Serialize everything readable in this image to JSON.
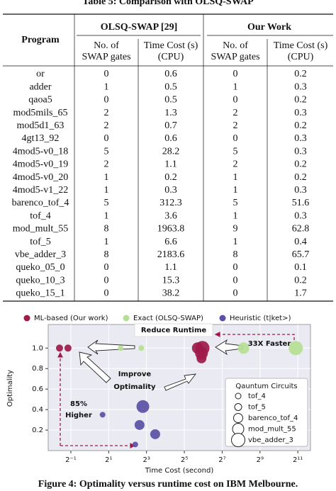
{
  "table": {
    "title": "Table 5: Comparison with OLSQ-SWAP",
    "program_header": "Program",
    "groups": [
      "OLSQ-SWAP [29]",
      "Our Work"
    ],
    "subheaders": [
      [
        "No. of",
        "SWAP gates"
      ],
      [
        "Time Cost (s)",
        "(CPU)"
      ],
      [
        "No. of",
        "SWAP gates"
      ],
      [
        "Time Cost (s)",
        "(CPU)"
      ]
    ],
    "rows": [
      [
        "or",
        0,
        0.6,
        0,
        0.2
      ],
      [
        "adder",
        1,
        0.5,
        1,
        0.3
      ],
      [
        "qaoa5",
        0,
        0.5,
        0,
        0.2
      ],
      [
        "mod5mils_65",
        2,
        1.3,
        2,
        0.3
      ],
      [
        "mod5d1_63",
        2,
        0.7,
        2,
        0.2
      ],
      [
        "4gt13_92",
        0,
        0.6,
        0,
        0.3
      ],
      [
        "4mod5-v0_18",
        5,
        28.2,
        5,
        0.3
      ],
      [
        "4mod5-v0_19",
        2,
        1.1,
        2,
        0.2
      ],
      [
        "4mod5-v0_20",
        1,
        0.2,
        1,
        0.2
      ],
      [
        "4mod5-v1_22",
        1,
        0.3,
        1,
        0.3
      ],
      [
        "barenco_tof_4",
        5,
        312.3,
        5,
        51.6
      ],
      [
        "tof_4",
        1,
        3.6,
        1,
        0.3
      ],
      [
        "mod_mult_55",
        8,
        1963.8,
        9,
        62.8
      ],
      [
        "tof_5",
        1,
        6.6,
        1,
        0.4
      ],
      [
        "vbe_adder_3",
        8,
        2183.6,
        8,
        65.7
      ],
      [
        "queko_05_0",
        0,
        1.1,
        0,
        0.1
      ],
      [
        "queko_10_3",
        0,
        15.3,
        0,
        0.2
      ],
      [
        "queko_15_1",
        0,
        38.2,
        0,
        1.7
      ]
    ]
  },
  "chart_data": {
    "type": "scatter",
    "xlabel": "Time Cost (second)",
    "ylabel": "Optimality",
    "xlog": true,
    "xlim": [
      0.218,
      3257
    ],
    "xticks": [
      {
        "value": 0.5,
        "label": "2⁻¹"
      },
      {
        "value": 2,
        "label": "2¹"
      },
      {
        "value": 8,
        "label": "2³"
      },
      {
        "value": 32,
        "label": "2⁵"
      },
      {
        "value": 128,
        "label": "2⁷"
      },
      {
        "value": 512,
        "label": "2⁹"
      },
      {
        "value": 2048,
        "label": "2¹¹"
      }
    ],
    "ylim": [
      0,
      1.23
    ],
    "yticks": [
      {
        "value": 0.2,
        "label": "0.2"
      },
      {
        "value": 0.4,
        "label": "0.4"
      },
      {
        "value": 0.6,
        "label": "0.6"
      },
      {
        "value": 0.8,
        "label": "0.8"
      },
      {
        "value": 1,
        "label": "1.0"
      }
    ],
    "series": [
      {
        "name": "ML-based (Our work)",
        "color": "#9e1a4a",
        "x": [
          0.33,
          0.45,
          52,
          62,
          60,
          60
        ],
        "y": [
          1,
          1,
          1,
          1,
          0.95,
          0.9
        ],
        "sizes": [
          5,
          5,
          8,
          10,
          9,
          7
        ]
      },
      {
        "name": "Exact (OLSQ-SWAP)",
        "color": "#b5de95",
        "x": [
          3.1,
          6.6,
          280,
          1900
        ],
        "y": [
          1,
          1,
          1,
          1
        ],
        "sizes": [
          4,
          4,
          8,
          10
        ]
      },
      {
        "name": "Heuristic (t|ket>)",
        "color": "#5a4fa6",
        "x": [
          1.6,
          7,
          6.2,
          5.3,
          11
        ],
        "y": [
          0.35,
          0.43,
          0.25,
          0.06,
          0.16
        ],
        "sizes": [
          4,
          9,
          7,
          4,
          7
        ]
      }
    ],
    "size_legend": {
      "title": "Qauntum Circuits",
      "labels": [
        "tof_4",
        "tof_5",
        "barenco_tof_4",
        "mod_mult_55",
        "vbe_adder_3"
      ],
      "sizes": [
        4,
        5,
        6.5,
        8,
        9.5
      ]
    },
    "annotations": [
      "Reduce Runtime",
      "33X Faster",
      "Improve",
      "Optimality",
      "85%",
      "Higher"
    ]
  },
  "figure_caption": "Figure 4: Optimality versus runtime cost on IBM Melbourne."
}
